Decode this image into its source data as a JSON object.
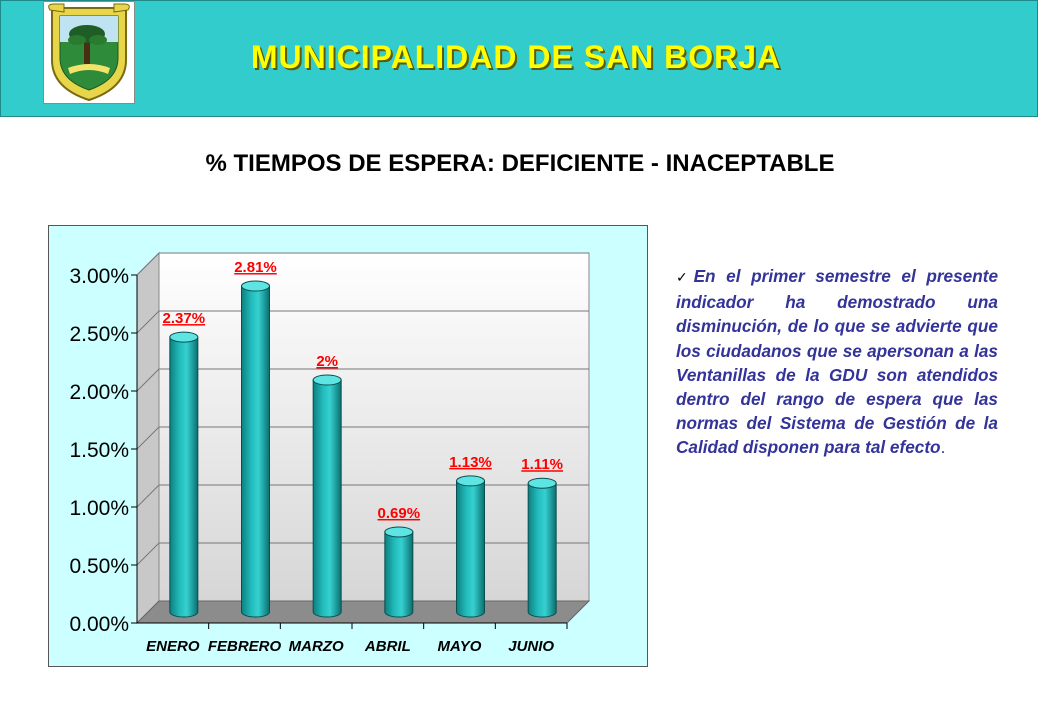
{
  "header": {
    "title": "MUNICIPALIDAD DE SAN BORJA",
    "logo_icon": "municipal-crest-icon",
    "background": "#33cccc",
    "title_color": "#ffff00"
  },
  "subtitle": "% TIEMPOS DE ESPERA: DEFICIENTE - INACEPTABLE",
  "note": {
    "bullet_icon": "checkmark-icon",
    "text": "En el primer semestre el presente indicador ha demostrado una disminución, de lo que se advierte que los ciudadanos que se apersonan a las Ventanillas de la GDU son atendidos dentro del rango de espera que las normas del Sistema de Gestión de la Calidad disponen para tal efecto",
    "end": ".",
    "color": "#333399"
  },
  "chart_data": {
    "type": "bar",
    "categories": [
      "ENERO",
      "FEBRERO",
      "MARZO",
      "ABRIL",
      "MAYO",
      "JUNIO"
    ],
    "values": [
      2.37,
      2.81,
      2.0,
      0.69,
      1.13,
      1.11
    ],
    "data_labels": [
      "2.37%",
      "2.81%",
      "2%",
      "0.69%",
      "1.13%",
      "1.11%"
    ],
    "y_ticks": [
      "0.00%",
      "0.50%",
      "1.00%",
      "1.50%",
      "2.00%",
      "2.50%",
      "3.00%"
    ],
    "ylim": [
      0,
      3
    ],
    "title": "",
    "xlabel": "",
    "ylabel": "",
    "grid": true,
    "legend": "none",
    "bar_color": "#1ba9a9",
    "label_color": "#ff0000",
    "background": "#ccffff"
  }
}
